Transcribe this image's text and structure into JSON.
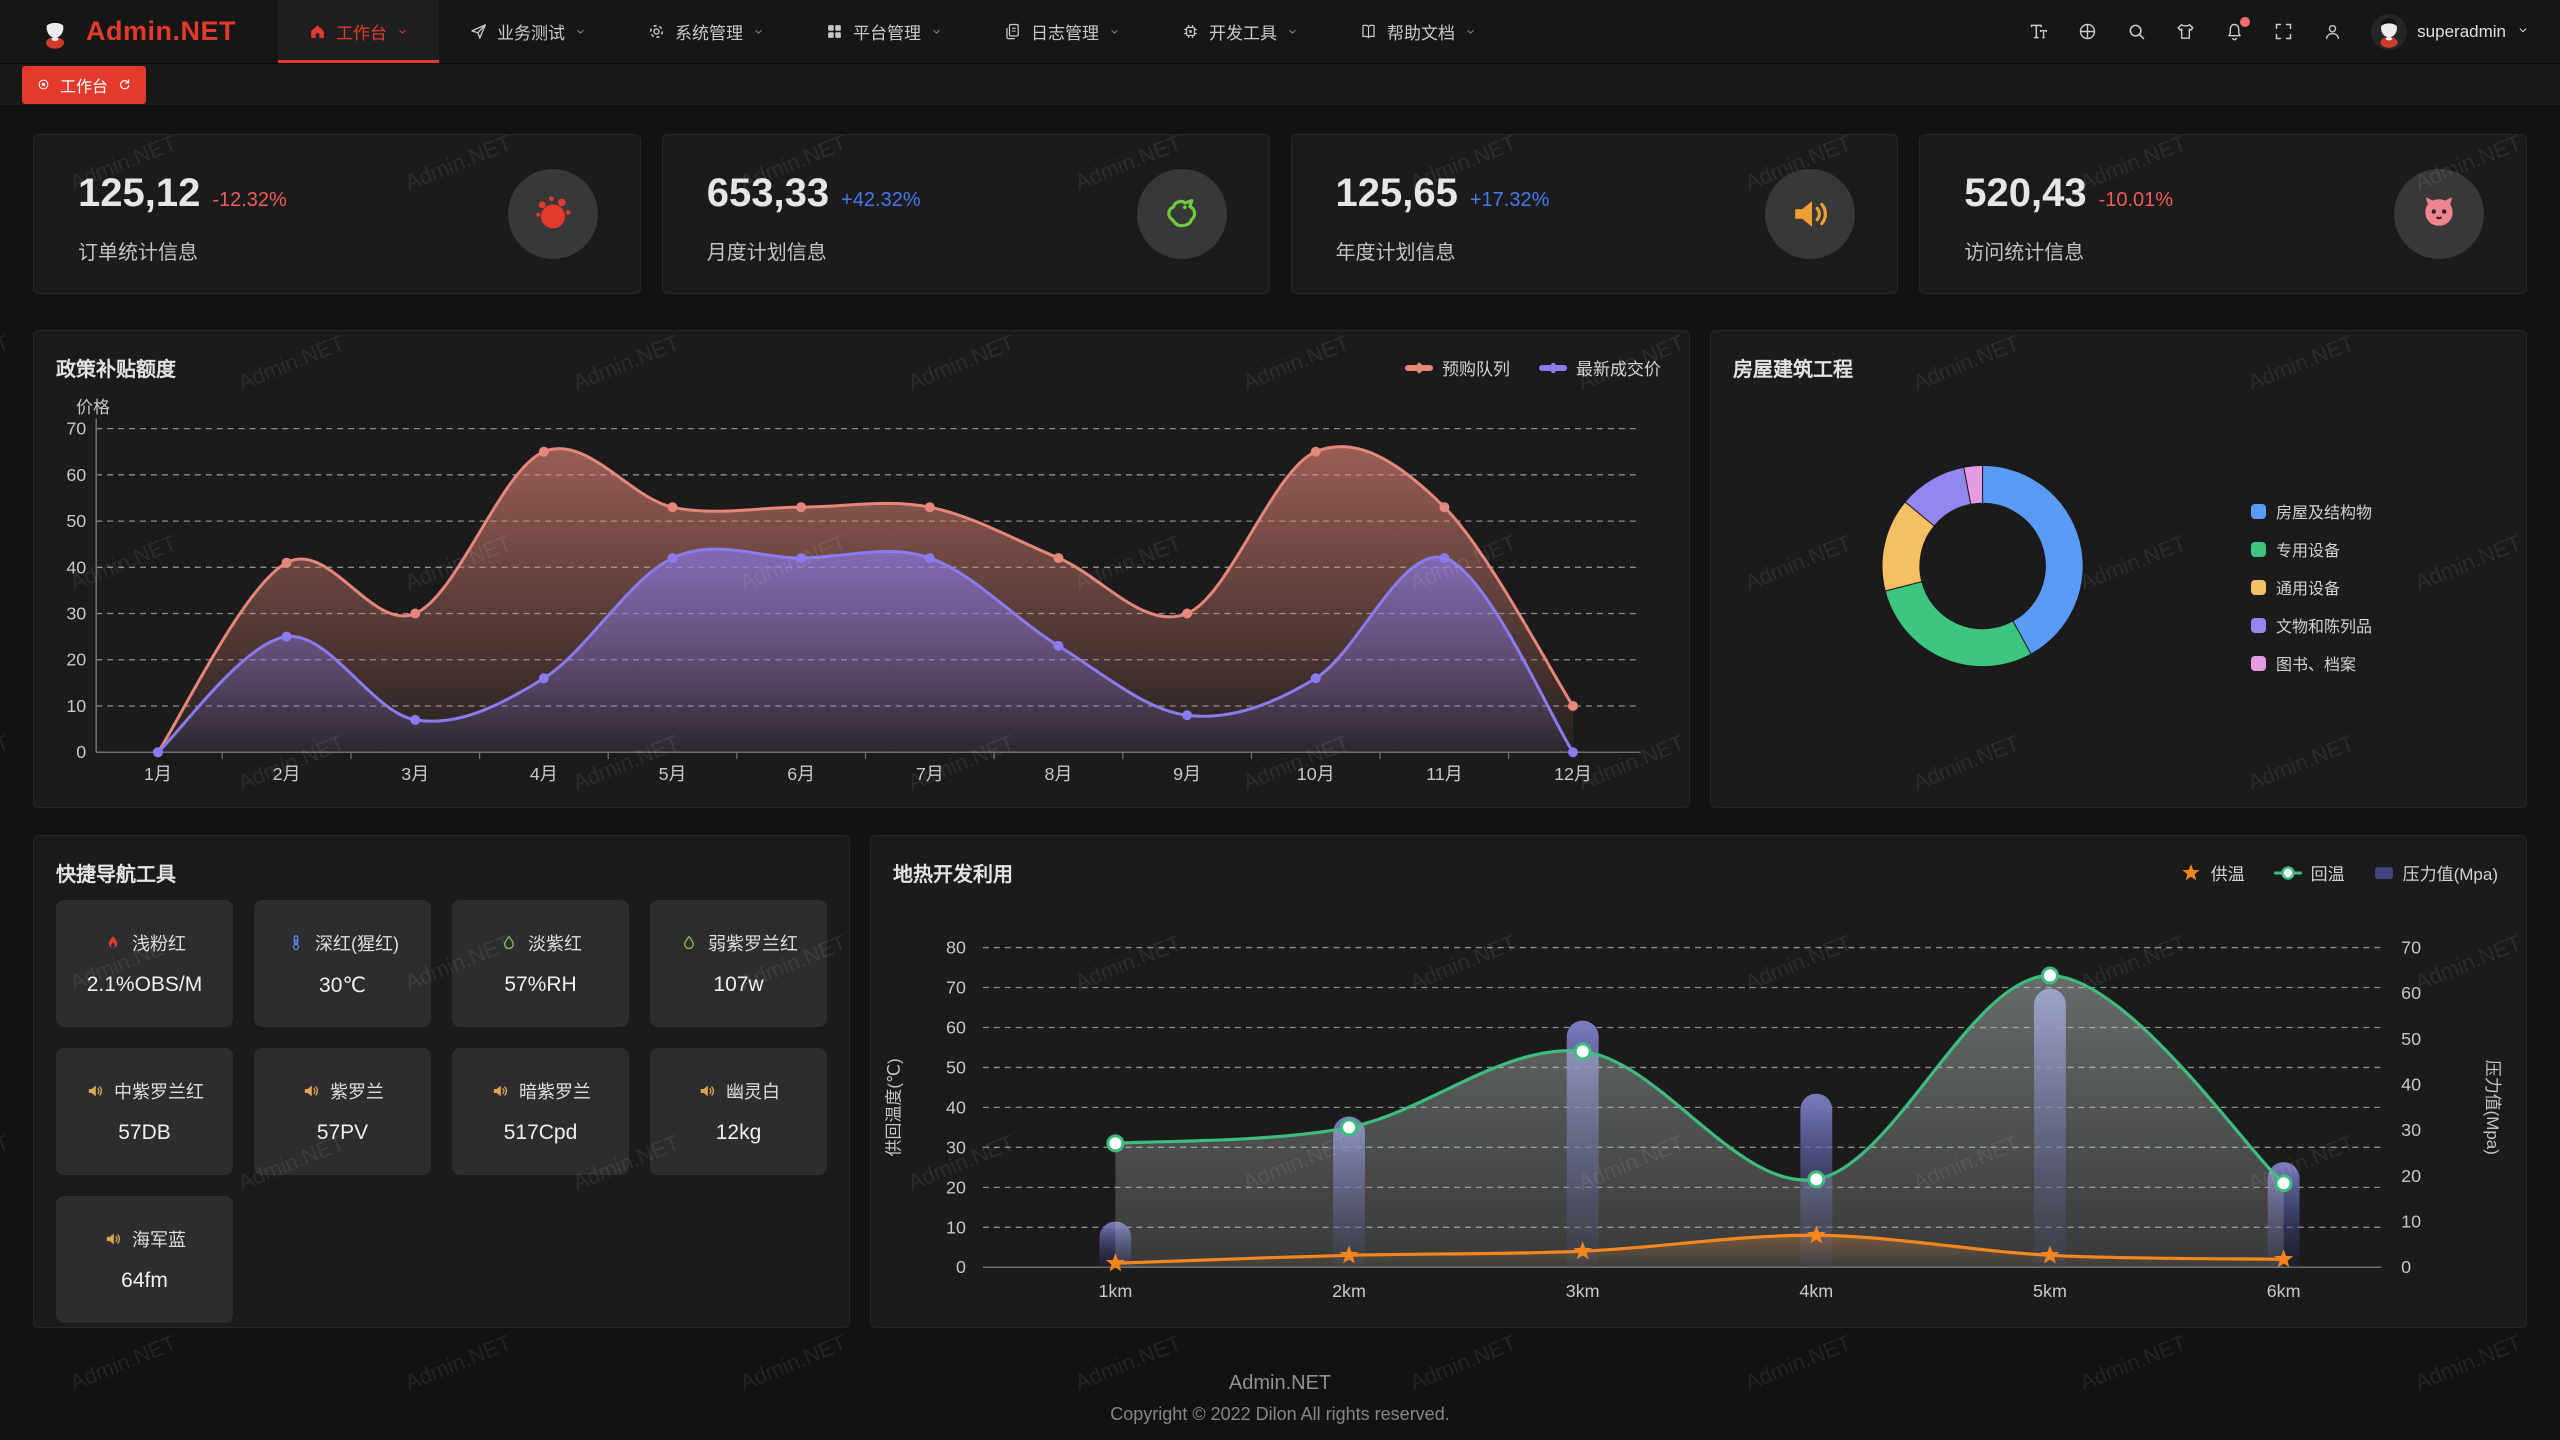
{
  "brand": {
    "name": "Admin.NET"
  },
  "header": {
    "nav": [
      {
        "label": "工作台",
        "icon": "home-icon",
        "active": true
      },
      {
        "label": "业务测试",
        "icon": "send-icon",
        "active": false
      },
      {
        "label": "系统管理",
        "icon": "gear-icon",
        "active": false
      },
      {
        "label": "平台管理",
        "icon": "grid-icon",
        "active": false
      },
      {
        "label": "日志管理",
        "icon": "log-icon",
        "active": false
      },
      {
        "label": "开发工具",
        "icon": "cpu-icon",
        "active": false
      },
      {
        "label": "帮助文档",
        "icon": "book-icon",
        "active": false
      }
    ],
    "tools": [
      {
        "name": "font-size-icon"
      },
      {
        "name": "language-icon"
      },
      {
        "name": "search-icon"
      },
      {
        "name": "theme-icon"
      },
      {
        "name": "notification-icon",
        "badge": true
      },
      {
        "name": "fullscreen-icon"
      },
      {
        "name": "profile-icon"
      }
    ],
    "user": {
      "name": "superadmin"
    }
  },
  "tabbar": {
    "active_tab": "工作台"
  },
  "trend_colors": {
    "up": "#4678f0",
    "down": "#f15a5a"
  },
  "stats": [
    {
      "value": "125,12",
      "delta": "-12.32%",
      "trend": "down",
      "label": "订单统计信息",
      "icon": "splash-icon",
      "icon_color": "#e23b2e"
    },
    {
      "value": "653,33",
      "delta": "+42.32%",
      "trend": "up",
      "label": "月度计划信息",
      "icon": "bird-icon",
      "icon_color": "#6ecb3e"
    },
    {
      "value": "125,65",
      "delta": "+17.32%",
      "trend": "up",
      "label": "年度计划信息",
      "icon": "speaker-icon",
      "icon_color": "#efa033"
    },
    {
      "value": "520,43",
      "delta": "-10.01%",
      "trend": "down",
      "label": "访问统计信息",
      "icon": "octocat-icon",
      "icon_color": "#f0848f"
    }
  ],
  "quicknav": {
    "title": "快捷导航工具",
    "tiles": [
      {
        "label": "浅粉红",
        "value": "2.1%OBS/M",
        "icon": "fire-icon",
        "icon_color": "#e23b2e"
      },
      {
        "label": "深红(猩红)",
        "value": "30℃",
        "icon": "thermometer-icon",
        "icon_color": "#5b8cf8"
      },
      {
        "label": "淡紫红",
        "value": "57%RH",
        "icon": "drop-icon",
        "icon_color": "#7ec050"
      },
      {
        "label": "弱紫罗兰红",
        "value": "107w",
        "icon": "drop-icon",
        "icon_color": "#7ec050"
      },
      {
        "label": "中紫罗兰红",
        "value": "57DB",
        "icon": "speaker-icon",
        "icon_color": "#dca54f"
      },
      {
        "label": "紫罗兰",
        "value": "57PV",
        "icon": "speaker-icon",
        "icon_color": "#dca54f"
      },
      {
        "label": "暗紫罗兰",
        "value": "517Cpd",
        "icon": "speaker-icon",
        "icon_color": "#dca54f"
      },
      {
        "label": "幽灵白",
        "value": "12kg",
        "icon": "speaker-icon",
        "icon_color": "#dca54f"
      },
      {
        "label": "海军蓝",
        "value": "64fm",
        "icon": "speaker-icon",
        "icon_color": "#dca54f"
      }
    ]
  },
  "footer": {
    "line1": "Admin.NET",
    "line2": "Copyright © 2022 Dilon All rights reserved."
  },
  "watermark": {
    "text": "Admin.NET"
  },
  "chart_data": [
    {
      "id": "policy",
      "type": "area",
      "title": "政策补贴额度",
      "ylabel": "价格",
      "categories": [
        "1月",
        "2月",
        "3月",
        "4月",
        "5月",
        "6月",
        "7月",
        "8月",
        "9月",
        "10月",
        "11月",
        "12月"
      ],
      "series": [
        {
          "name": "预购队列",
          "color": "#e78779",
          "values": [
            0,
            41,
            30,
            65,
            53,
            53,
            53,
            42,
            30,
            65,
            53,
            10
          ]
        },
        {
          "name": "最新成交价",
          "color": "#8a7bf0",
          "values": [
            0,
            25,
            7,
            16,
            42,
            42,
            42,
            23,
            8,
            16,
            42,
            0
          ]
        }
      ],
      "ylim": [
        0,
        70
      ],
      "ytick_interval": 10,
      "grid": "dashed",
      "smooth": true,
      "legend_position": "top-right"
    },
    {
      "id": "housing",
      "type": "pie",
      "title": "房屋建筑工程",
      "donut": true,
      "legend_position": "right",
      "slices": [
        {
          "name": "房屋及结构物",
          "value": 42,
          "color": "#5b9bf8"
        },
        {
          "name": "专用设备",
          "value": 29,
          "color": "#3ec57f"
        },
        {
          "name": "通用设备",
          "value": 15,
          "color": "#f6c065"
        },
        {
          "name": "文物和陈列品",
          "value": 11,
          "color": "#9287ee"
        },
        {
          "name": "图书、档案",
          "value": 3,
          "color": "#e59ae2"
        }
      ]
    },
    {
      "id": "geothermal",
      "type": "combo",
      "title": "地热开发利用",
      "categories": [
        "1km",
        "2km",
        "3km",
        "4km",
        "5km",
        "6km"
      ],
      "ylabel_left": "供回温度(℃)",
      "ylabel_right": "压力值(Mpa)",
      "ylim_left": [
        0,
        80
      ],
      "ylim_right": [
        0,
        70
      ],
      "ytick_interval": 10,
      "grid": "dashed",
      "smooth": true,
      "legend_position": "top-right",
      "series": [
        {
          "name": "供温",
          "type": "line",
          "axis": "left",
          "marker": "star",
          "color": "#f5861f",
          "values": [
            1,
            3,
            4,
            8,
            3,
            2
          ]
        },
        {
          "name": "回温",
          "type": "line",
          "axis": "left",
          "marker": "circle",
          "color": "#3dbd7d",
          "area": true,
          "values": [
            31,
            35,
            54,
            22,
            73,
            21
          ]
        },
        {
          "name": "压力值(Mpa)",
          "type": "bar",
          "axis": "right",
          "color": "#41437d",
          "values": [
            10,
            33,
            54,
            38,
            61,
            23
          ]
        }
      ]
    }
  ]
}
